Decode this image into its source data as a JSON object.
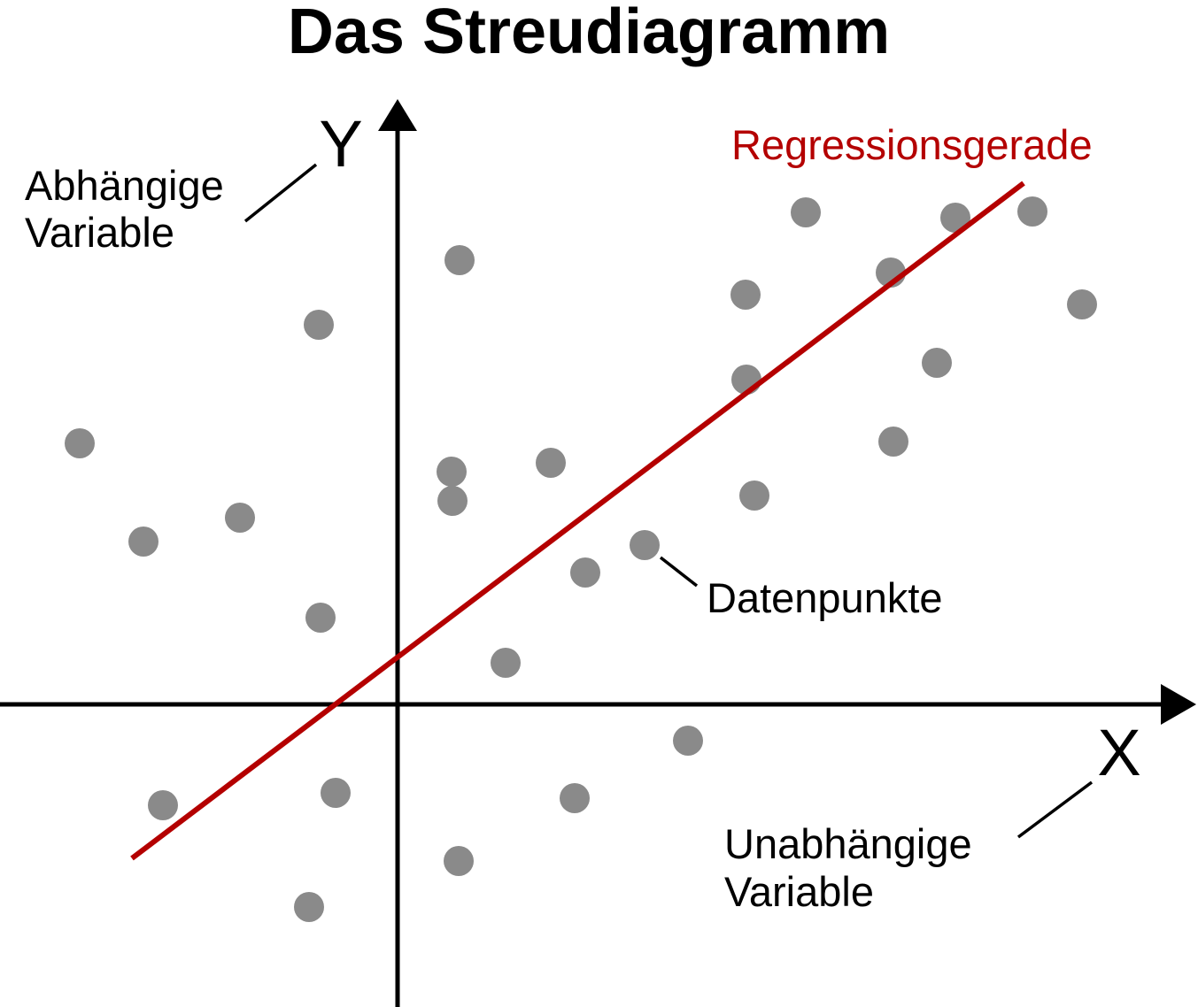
{
  "title": "Das Streudiagramm",
  "colors": {
    "axis": "#000000",
    "points": "#8a8a8a",
    "regression": "#b40000"
  },
  "chart_data": {
    "type": "scatter",
    "title": "Das Streudiagramm",
    "xlabel": "X",
    "ylabel": "Y",
    "xlim": [
      -449,
      868
    ],
    "ylim": [
      -345,
      681
    ],
    "grid": false,
    "points": [
      {
        "x": -359,
        "y": 295
      },
      {
        "x": -287,
        "y": 184
      },
      {
        "x": -178,
        "y": 211
      },
      {
        "x": -89,
        "y": 429
      },
      {
        "x": -87,
        "y": 98
      },
      {
        "x": -265,
        "y": -114
      },
      {
        "x": -70,
        "y": -100
      },
      {
        "x": -100,
        "y": -229
      },
      {
        "x": 70,
        "y": 502
      },
      {
        "x": 61,
        "y": 263
      },
      {
        "x": 62,
        "y": 230
      },
      {
        "x": 173,
        "y": 273
      },
      {
        "x": 212,
        "y": 149
      },
      {
        "x": 279,
        "y": 180
      },
      {
        "x": 122,
        "y": 47
      },
      {
        "x": 200,
        "y": -106
      },
      {
        "x": 69,
        "y": -177
      },
      {
        "x": 328,
        "y": -41
      },
      {
        "x": 393,
        "y": 463
      },
      {
        "x": 394,
        "y": 367
      },
      {
        "x": 403,
        "y": 236
      },
      {
        "x": 461,
        "y": 556
      },
      {
        "x": 557,
        "y": 488
      },
      {
        "x": 560,
        "y": 297
      },
      {
        "x": 609,
        "y": 386
      },
      {
        "x": 630,
        "y": 550
      },
      {
        "x": 717,
        "y": 557
      },
      {
        "x": 773,
        "y": 452
      }
    ],
    "regression_line": {
      "name": "Regressionsgerade",
      "from": {
        "x": -300,
        "y": -174
      },
      "to": {
        "x": 707,
        "y": 589
      }
    }
  },
  "annotations": {
    "y_variable": [
      "Abhängige",
      "Variable"
    ],
    "x_variable": [
      "Unabhängige",
      "Variable"
    ],
    "regression_label": "Regressionsgerade",
    "points_label": "Datenpunkte"
  }
}
